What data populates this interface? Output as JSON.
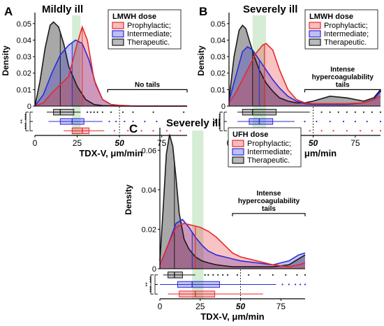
{
  "colors": {
    "prophylactic": "#e8282b",
    "intermediate": "#2b2bd9",
    "therapeutic": "#1a1a1a",
    "green_band": "#9fd89f"
  },
  "chart_data": [
    {
      "panel_letter": "A",
      "type": "area",
      "title": "Mildly ill",
      "xlabel": "TDX-V, μm/min",
      "ylabel": "Density",
      "xlim": [
        0,
        90
      ],
      "ylim": [
        0,
        0.055
      ],
      "x_ticks": [
        "0",
        "25",
        "50",
        "75"
      ],
      "y_ticks": [
        "0",
        "0.01",
        "0.02",
        "0.03",
        "0.04",
        "0.05"
      ],
      "legend_title": "LMWH dose",
      "legend_position": "top-right",
      "annotation": "No tails",
      "annotation_range": [
        43,
        90
      ],
      "significance": [
        "***",
        "***",
        "**"
      ],
      "series": [
        {
          "name": "Prophylactic;",
          "color_key": "prophylactic",
          "x": [
            0,
            5,
            10,
            15,
            20,
            25,
            28,
            31,
            35,
            40,
            45,
            50,
            60,
            70,
            80,
            90
          ],
          "y": [
            0,
            0.002,
            0.008,
            0.013,
            0.018,
            0.038,
            0.048,
            0.04,
            0.016,
            0.004,
            0.001,
            0.0005,
            0,
            0,
            0,
            0
          ],
          "median_line": 28,
          "box": {
            "min": 17,
            "q1": 22,
            "median": 28,
            "q3": 32,
            "max": 41,
            "outliers": [
              47,
              55,
              63,
              70,
              78,
              86
            ]
          }
        },
        {
          "name": "Intermediate;",
          "color_key": "intermediate",
          "x": [
            0,
            5,
            10,
            15,
            20,
            24,
            28,
            32,
            36,
            40,
            45,
            50,
            60,
            70,
            80,
            90
          ],
          "y": [
            0,
            0.007,
            0.02,
            0.031,
            0.037,
            0.04,
            0.038,
            0.028,
            0.013,
            0.004,
            0.001,
            0.0003,
            0,
            0,
            0,
            0
          ],
          "median_line": 22,
          "box": {
            "min": 8,
            "q1": 15,
            "median": 22,
            "q3": 29,
            "max": 40,
            "outliers": [
              44,
              48,
              53,
              58,
              65,
              72
            ]
          }
        },
        {
          "name": "Therapeutic.",
          "color_key": "therapeutic",
          "x": [
            0,
            3,
            6,
            9,
            11,
            14,
            17,
            20,
            25,
            30,
            35,
            40,
            50,
            60,
            70,
            80,
            90
          ],
          "y": [
            0,
            0.015,
            0.035,
            0.049,
            0.051,
            0.048,
            0.038,
            0.024,
            0.012,
            0.004,
            0.001,
            0.0003,
            0,
            0,
            0,
            0,
            0
          ],
          "median_line": 15,
          "box": {
            "min": 7,
            "q1": 11,
            "median": 15,
            "q3": 23,
            "max": 27,
            "outliers": [
              31,
              33,
              35,
              37,
              40,
              45,
              52,
              58,
              70,
              88
            ]
          }
        }
      ],
      "green_band": [
        22,
        27
      ]
    },
    {
      "panel_letter": "B",
      "type": "area",
      "title": "Severely ill",
      "xlabel": "TDX-V, μm/min",
      "ylabel": "Density",
      "xlim": [
        0,
        90
      ],
      "ylim": [
        0,
        0.055
      ],
      "x_ticks": [
        "0",
        "25",
        "50",
        "75"
      ],
      "y_ticks": [
        "0",
        "0.01",
        "0.02",
        "0.03",
        "0.04",
        "0.05"
      ],
      "legend_title": "LMWH dose",
      "legend_position": "top-right",
      "annotation": "Intense\nhypercoagulability\ntails",
      "annotation_range": [
        45,
        90
      ],
      "significance": [
        "***",
        "***",
        "**"
      ],
      "series": [
        {
          "name": "Prophylactic;",
          "color_key": "prophylactic",
          "x": [
            0,
            4,
            8,
            12,
            16,
            20,
            22,
            26,
            30,
            35,
            40,
            45,
            50,
            60,
            70,
            80,
            86,
            90
          ],
          "y": [
            0.002,
            0.008,
            0.016,
            0.024,
            0.032,
            0.037,
            0.038,
            0.034,
            0.022,
            0.01,
            0.004,
            0.002,
            0.0015,
            0.0015,
            0.0015,
            0.002,
            0.004,
            0.006
          ],
          "median_line": 21,
          "box": {
            "min": 9,
            "q1": 16,
            "median": 21,
            "q3": 27,
            "max": 42,
            "outliers": [
              48,
              55,
              62,
              70,
              78,
              85,
              90
            ]
          }
        },
        {
          "name": "Intermediate;",
          "color_key": "intermediate",
          "x": [
            0,
            4,
            8,
            11,
            14,
            18,
            22,
            26,
            30,
            35,
            40,
            45,
            50,
            60,
            70,
            80,
            86,
            90
          ],
          "y": [
            0.003,
            0.018,
            0.033,
            0.036,
            0.034,
            0.028,
            0.022,
            0.016,
            0.011,
            0.006,
            0.003,
            0.0015,
            0.001,
            0.001,
            0.001,
            0.002,
            0.004,
            0.009
          ],
          "median_line": 18,
          "box": {
            "min": 5,
            "q1": 12,
            "median": 18,
            "q3": 26,
            "max": 39,
            "outliers": [
              45,
              52,
              60,
              68,
              75,
              82,
              90
            ]
          }
        },
        {
          "name": "Therapeutic.",
          "color_key": "therapeutic",
          "x": [
            0,
            3,
            6,
            8,
            10,
            12,
            15,
            18,
            22,
            26,
            30,
            35,
            40,
            45,
            50,
            60,
            70,
            80,
            86,
            90
          ],
          "y": [
            0.004,
            0.03,
            0.046,
            0.049,
            0.047,
            0.04,
            0.03,
            0.022,
            0.014,
            0.009,
            0.005,
            0.003,
            0.002,
            0.002,
            0.003,
            0.006,
            0.005,
            0.003,
            0.005,
            0.01
          ],
          "median_line": 14,
          "box": {
            "min": 5,
            "q1": 8,
            "median": 14,
            "q3": 28,
            "max": 48,
            "outliers": [
              55,
              60,
              65,
              70,
              75,
              80,
              85,
              90
            ]
          }
        }
      ],
      "green_band": [
        14,
        22
      ]
    },
    {
      "panel_letter": "C",
      "type": "area",
      "title": "Severely ill",
      "xlabel": "TDX-V, μm/min",
      "ylabel": "Density",
      "xlim": [
        0,
        90
      ],
      "ylim": [
        0,
        0.07
      ],
      "x_ticks": [
        "0",
        "25",
        "50",
        "75"
      ],
      "y_ticks": [
        "0",
        "0.02",
        "0.04",
        "0.06"
      ],
      "legend_title": "UFH dose",
      "legend_position": "top-right",
      "annotation": "Intense\nhypercoagulability\ntails",
      "annotation_range": [
        45,
        90
      ],
      "significance": [
        "***",
        "***",
        "**"
      ],
      "series": [
        {
          "name": "Prophylactic;",
          "color_key": "prophylactic",
          "x": [
            0,
            5,
            10,
            15,
            20,
            25,
            30,
            35,
            40,
            45,
            50,
            60,
            70,
            80,
            86,
            90
          ],
          "y": [
            0.002,
            0.012,
            0.021,
            0.023,
            0.022,
            0.021,
            0.019,
            0.016,
            0.012,
            0.008,
            0.006,
            0.004,
            0.002,
            0.001,
            0.002,
            0.003
          ],
          "median_line": 22,
          "box": {
            "min": 5,
            "q1": 12,
            "median": 22,
            "q3": 34,
            "max": 64,
            "outliers": []
          }
        },
        {
          "name": "Intermediate;",
          "color_key": "intermediate",
          "x": [
            0,
            5,
            10,
            14,
            18,
            22,
            26,
            30,
            35,
            40,
            45,
            50,
            60,
            70,
            80,
            86,
            90
          ],
          "y": [
            0.002,
            0.012,
            0.023,
            0.025,
            0.021,
            0.016,
            0.012,
            0.009,
            0.007,
            0.006,
            0.005,
            0.004,
            0.003,
            0.002,
            0.004,
            0.007,
            0.008
          ],
          "median_line": 20,
          "box": {
            "min": 0,
            "q1": 11,
            "median": 20,
            "q3": 37,
            "max": 72,
            "outliers": [
              76,
              80,
              84,
              87,
              90
            ]
          }
        },
        {
          "name": "Therapeutic.",
          "color_key": "therapeutic",
          "x": [
            0,
            2,
            4,
            6,
            8,
            10,
            12,
            15,
            18,
            22,
            26,
            30,
            35,
            40,
            45,
            50,
            60,
            70,
            80,
            86,
            90
          ],
          "y": [
            0.004,
            0.03,
            0.058,
            0.068,
            0.062,
            0.046,
            0.028,
            0.015,
            0.01,
            0.006,
            0.004,
            0.003,
            0.002,
            0.0015,
            0.001,
            0.001,
            0.001,
            0.001,
            0.002,
            0.005,
            0.007
          ],
          "median_line": 9,
          "box": {
            "min": 2,
            "q1": 5,
            "median": 9,
            "q3": 14,
            "max": 22,
            "outliers": [
              28,
              30,
              33,
              36,
              39,
              42,
              48,
              55,
              62,
              70,
              78,
              85,
              90
            ]
          }
        }
      ],
      "green_band": [
        20,
        27
      ]
    }
  ]
}
